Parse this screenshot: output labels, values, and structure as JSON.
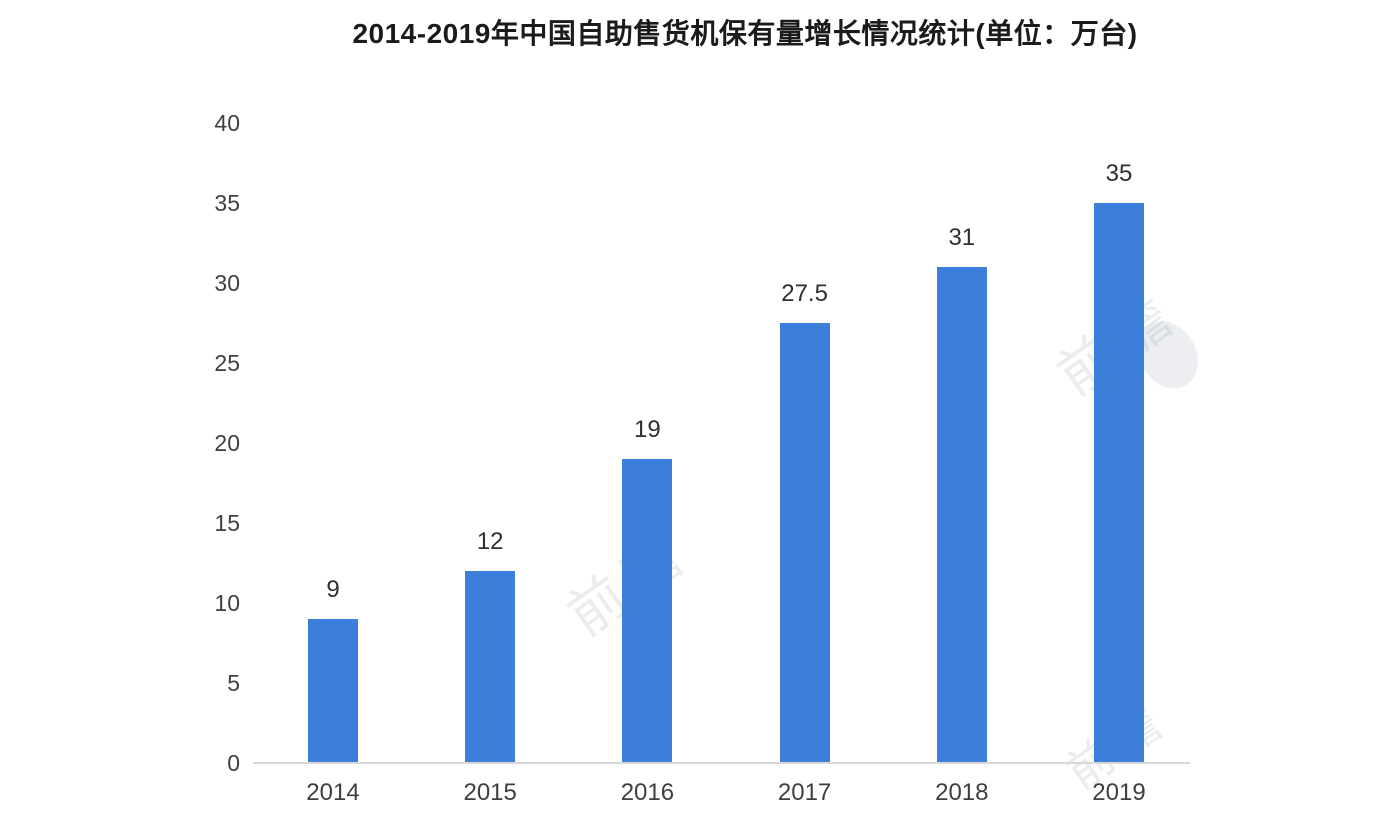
{
  "chart_data": {
    "type": "bar",
    "title": "2014-2019年中国自助售货机保有量增长情况统计(单位：万台)",
    "categories": [
      "2014",
      "2015",
      "2016",
      "2017",
      "2018",
      "2019"
    ],
    "values": [
      9,
      12,
      19,
      27.5,
      31,
      35
    ],
    "value_labels": [
      "9",
      "12",
      "19",
      "27.5",
      "31",
      "35"
    ],
    "xlabel": "",
    "ylabel": "",
    "ylim": [
      0,
      40
    ],
    "yticks": [
      0,
      5,
      10,
      15,
      20,
      25,
      30,
      35,
      40
    ],
    "grid": false,
    "legend": "none",
    "bar_color": "#3d7edb",
    "axis_color": "#d8d8d8",
    "tick_label_color": "#3f3f3f",
    "value_label_color": "#2f2f2f",
    "category_label_color": "#3f3f3f",
    "title_color": "#1b1b1b"
  },
  "watermark": {
    "text": "前瞻"
  }
}
